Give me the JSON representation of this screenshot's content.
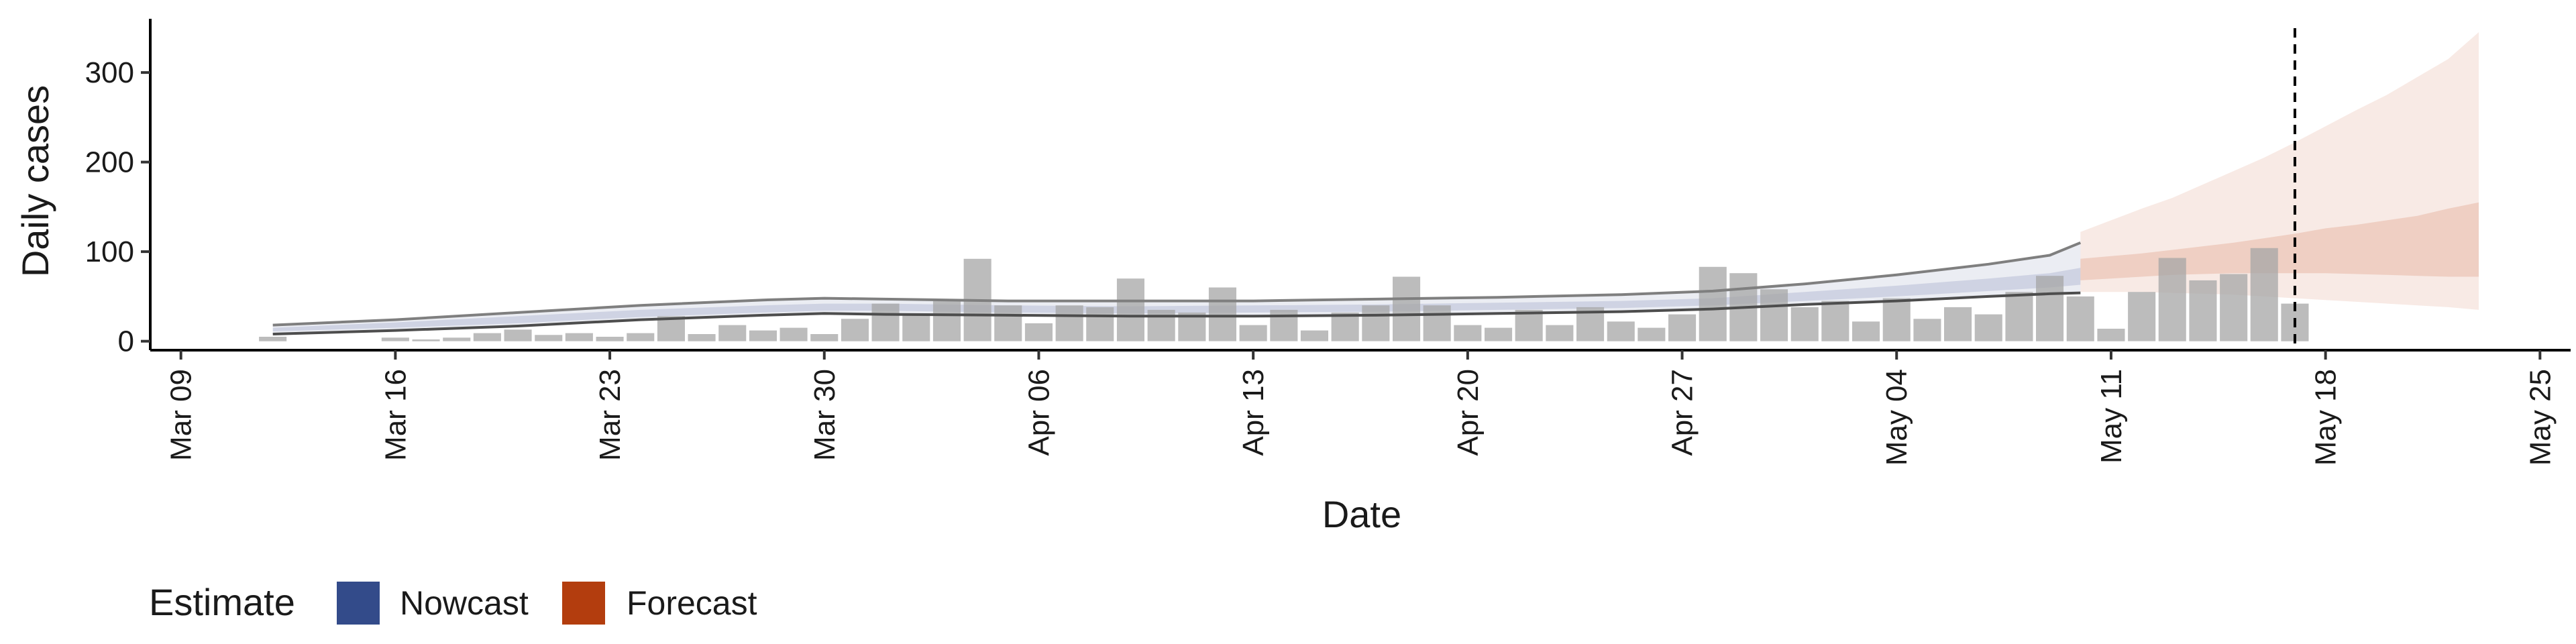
{
  "chart_data": {
    "type": "bar",
    "title": "",
    "xlabel": "Date",
    "ylabel": "Daily cases",
    "ylim": [
      -10,
      360
    ],
    "xlim": [
      "2020-03-08",
      "2020-05-26"
    ],
    "grid": false,
    "y_ticks": [
      0,
      100,
      200,
      300
    ],
    "x_ticks": [
      {
        "date": "2020-03-09",
        "label": "Mar 09"
      },
      {
        "date": "2020-03-16",
        "label": "Mar 16"
      },
      {
        "date": "2020-03-23",
        "label": "Mar 23"
      },
      {
        "date": "2020-03-30",
        "label": "Mar 30"
      },
      {
        "date": "2020-04-06",
        "label": "Apr 06"
      },
      {
        "date": "2020-04-13",
        "label": "Apr 13"
      },
      {
        "date": "2020-04-20",
        "label": "Apr 20"
      },
      {
        "date": "2020-04-27",
        "label": "Apr 27"
      },
      {
        "date": "2020-05-04",
        "label": "May 04"
      },
      {
        "date": "2020-05-11",
        "label": "May 11"
      },
      {
        "date": "2020-05-18",
        "label": "May 18"
      },
      {
        "date": "2020-05-25",
        "label": "May 25"
      }
    ],
    "observed": {
      "color": "#a6a6a6",
      "dates": [
        "2020-03-12",
        "2020-03-13",
        "2020-03-14",
        "2020-03-15",
        "2020-03-16",
        "2020-03-17",
        "2020-03-18",
        "2020-03-19",
        "2020-03-20",
        "2020-03-21",
        "2020-03-22",
        "2020-03-23",
        "2020-03-24",
        "2020-03-25",
        "2020-03-26",
        "2020-03-27",
        "2020-03-28",
        "2020-03-29",
        "2020-03-30",
        "2020-03-31",
        "2020-04-01",
        "2020-04-02",
        "2020-04-03",
        "2020-04-04",
        "2020-04-05",
        "2020-04-06",
        "2020-04-07",
        "2020-04-08",
        "2020-04-09",
        "2020-04-10",
        "2020-04-11",
        "2020-04-12",
        "2020-04-13",
        "2020-04-14",
        "2020-04-15",
        "2020-04-16",
        "2020-04-17",
        "2020-04-18",
        "2020-04-19",
        "2020-04-20",
        "2020-04-21",
        "2020-04-22",
        "2020-04-23",
        "2020-04-24",
        "2020-04-25",
        "2020-04-26",
        "2020-04-27",
        "2020-04-28",
        "2020-04-29",
        "2020-04-30",
        "2020-05-01",
        "2020-05-02",
        "2020-05-03",
        "2020-05-04",
        "2020-05-05",
        "2020-05-06",
        "2020-05-07",
        "2020-05-08",
        "2020-05-09",
        "2020-05-10",
        "2020-05-11",
        "2020-05-12",
        "2020-05-13",
        "2020-05-14",
        "2020-05-15",
        "2020-05-16",
        "2020-05-17"
      ],
      "values": [
        5,
        0,
        0,
        0,
        4,
        2,
        4,
        9,
        13,
        7,
        9,
        5,
        9,
        28,
        8,
        18,
        12,
        15,
        8,
        25,
        42,
        30,
        45,
        92,
        40,
        20,
        40,
        38,
        70,
        35,
        32,
        60,
        18,
        35,
        12,
        32,
        40,
        72,
        40,
        18,
        15,
        35,
        18,
        38,
        22,
        15,
        30,
        83,
        76,
        58,
        38,
        45,
        22,
        48,
        25,
        38,
        30,
        55,
        73,
        50,
        14,
        55,
        93,
        68,
        75,
        104,
        42
      ]
    },
    "nowcast": {
      "color": "#3c4d8c",
      "dates": [
        "2020-03-12",
        "2020-03-16",
        "2020-03-20",
        "2020-03-24",
        "2020-03-28",
        "2020-03-30",
        "2020-04-01",
        "2020-04-05",
        "2020-04-09",
        "2020-04-13",
        "2020-04-17",
        "2020-04-21",
        "2020-04-25",
        "2020-04-28",
        "2020-05-01",
        "2020-05-04",
        "2020-05-07",
        "2020-05-09",
        "2020-05-10"
      ],
      "median": [
        13,
        18,
        24,
        31,
        36,
        38,
        38,
        36,
        35,
        36,
        37,
        39,
        41,
        44,
        50,
        56,
        63,
        68,
        72
      ],
      "inner_lower": [
        11,
        15,
        20,
        27,
        32,
        34,
        34,
        32,
        31,
        32,
        33,
        35,
        37,
        40,
        45,
        50,
        56,
        60,
        63
      ],
      "inner_upper": [
        15,
        21,
        28,
        35,
        40,
        42,
        42,
        40,
        39,
        40,
        41,
        43,
        45,
        48,
        55,
        62,
        70,
        76,
        82
      ],
      "outer_lower": [
        8,
        12,
        17,
        24,
        29,
        31,
        30,
        29,
        28,
        28,
        29,
        31,
        33,
        36,
        41,
        45,
        50,
        53,
        54
      ],
      "outer_upper": [
        18,
        24,
        32,
        40,
        46,
        48,
        47,
        45,
        45,
        45,
        47,
        49,
        52,
        56,
        64,
        74,
        86,
        96,
        110
      ]
    },
    "forecast": {
      "color": "#c9562c",
      "dates": [
        "2020-05-10",
        "2020-05-11",
        "2020-05-12",
        "2020-05-13",
        "2020-05-14",
        "2020-05-15",
        "2020-05-16",
        "2020-05-17",
        "2020-05-18",
        "2020-05-19",
        "2020-05-20",
        "2020-05-21",
        "2020-05-22",
        "2020-05-23"
      ],
      "inner_lower": [
        68,
        70,
        72,
        74,
        75,
        76,
        76,
        76,
        76,
        75,
        74,
        73,
        72,
        72
      ],
      "inner_upper": [
        92,
        95,
        98,
        102,
        106,
        110,
        115,
        120,
        126,
        130,
        135,
        140,
        148,
        155
      ],
      "outer_lower": [
        55,
        55,
        55,
        54,
        53,
        52,
        50,
        48,
        46,
        44,
        42,
        40,
        38,
        35
      ],
      "outer_upper": [
        122,
        135,
        148,
        160,
        175,
        190,
        205,
        222,
        240,
        258,
        275,
        295,
        315,
        345
      ]
    },
    "vline": {
      "date": "2020-05-17",
      "style": "dashed"
    },
    "legend": {
      "title": "Estimate",
      "position": "bottom-left",
      "items": [
        {
          "label": "Nowcast",
          "color": "#334b8a"
        },
        {
          "label": "Forecast",
          "color": "#b33d0e"
        }
      ]
    }
  }
}
